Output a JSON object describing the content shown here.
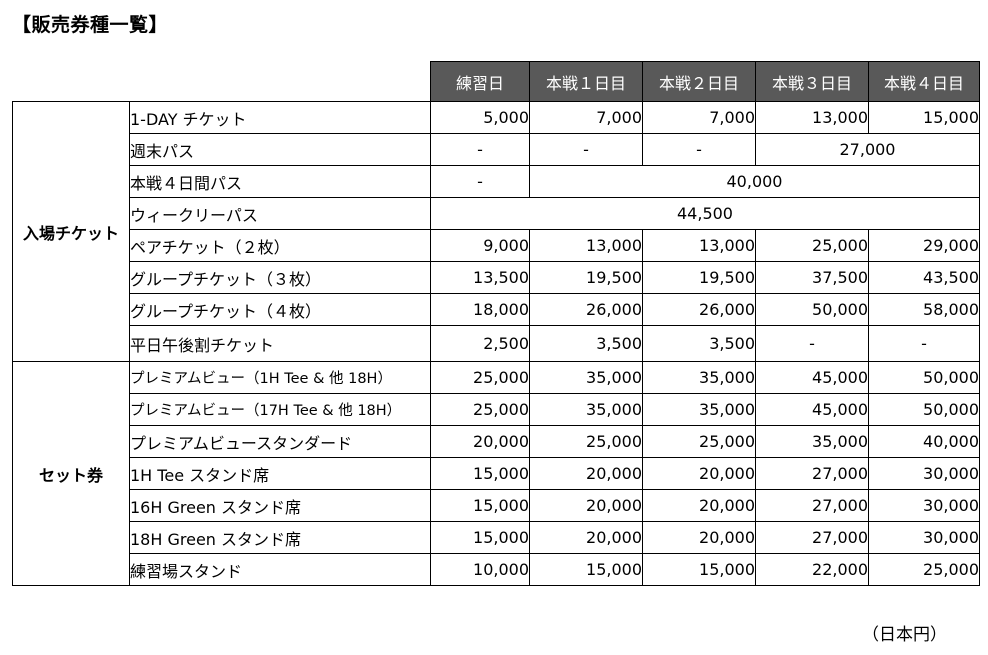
{
  "title": "【販売券種一覧】",
  "headers": [
    "練習日",
    "本戦１日目",
    "本戦２日目",
    "本戦３日目",
    "本戦４日目"
  ],
  "groups": {
    "entry": "入場チケット",
    "set": "セット券"
  },
  "rows": [
    {
      "name": "1-DAY チケット",
      "values": [
        "5,000",
        "7,000",
        "7,000",
        "13,000",
        "15,000"
      ]
    },
    {
      "name": "週末パス",
      "values": [
        "-",
        "-",
        "-",
        "27,000"
      ]
    },
    {
      "name": "本戦４日間パス",
      "values": [
        "-",
        "40,000"
      ]
    },
    {
      "name": "ウィークリーパス",
      "values": [
        "44,500"
      ]
    },
    {
      "name": "ペアチケット（２枚）",
      "values": [
        "9,000",
        "13,000",
        "13,000",
        "25,000",
        "29,000"
      ]
    },
    {
      "name": "グループチケット（３枚）",
      "values": [
        "13,500",
        "19,500",
        "19,500",
        "37,500",
        "43,500"
      ]
    },
    {
      "name": "グループチケット（４枚）",
      "values": [
        "18,000",
        "26,000",
        "26,000",
        "50,000",
        "58,000"
      ]
    },
    {
      "name": "平日午後割チケット",
      "values": [
        "2,500",
        "3,500",
        "3,500",
        "-",
        "-"
      ]
    },
    {
      "name": "プレミアムビュー（1H Tee & 他 18H）",
      "values": [
        "25,000",
        "35,000",
        "35,000",
        "45,000",
        "50,000"
      ]
    },
    {
      "name": "プレミアムビュー（17H Tee & 他 18H）",
      "values": [
        "25,000",
        "35,000",
        "35,000",
        "45,000",
        "50,000"
      ]
    },
    {
      "name": "プレミアムビュースタンダード",
      "values": [
        "20,000",
        "25,000",
        "25,000",
        "35,000",
        "40,000"
      ]
    },
    {
      "name": "1H Tee スタンド席",
      "values": [
        "15,000",
        "20,000",
        "20,000",
        "27,000",
        "30,000"
      ]
    },
    {
      "name": "16H Green スタンド席",
      "values": [
        "15,000",
        "20,000",
        "20,000",
        "27,000",
        "30,000"
      ]
    },
    {
      "name": "18H Green スタンド席",
      "values": [
        "15,000",
        "20,000",
        "20,000",
        "27,000",
        "30,000"
      ]
    },
    {
      "name": "練習場スタンド",
      "values": [
        "10,000",
        "15,000",
        "15,000",
        "22,000",
        "25,000"
      ]
    }
  ],
  "unit": "（日本円）"
}
